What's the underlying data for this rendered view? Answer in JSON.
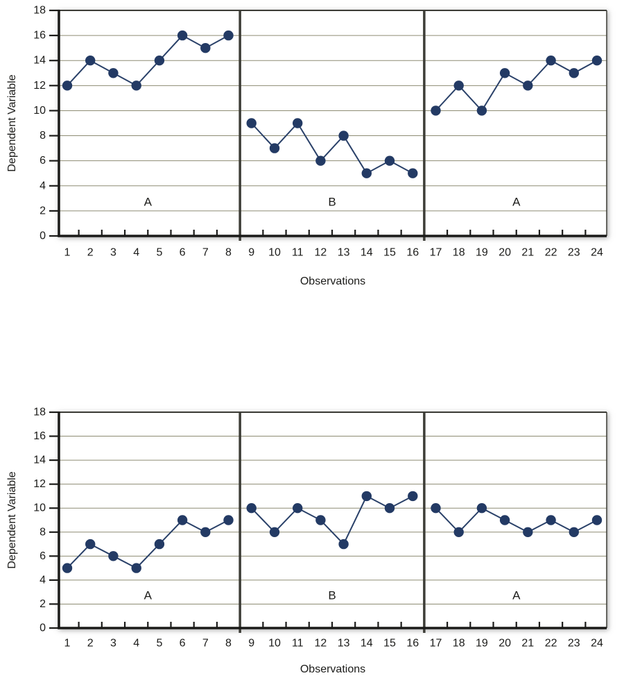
{
  "colors": {
    "plot_bg": "#FBEDCA",
    "grid": "#8D8C73",
    "frame": "#3D3D37",
    "axis": "#1B1B19",
    "line": "#2A4169",
    "point": "#233A64",
    "text": "#1B1B19",
    "page_bg": "#FFFFFF"
  },
  "chart_data": [
    {
      "type": "line",
      "title": "",
      "xlabel": "Observations",
      "ylabel": "Dependent Variable",
      "x": [
        1,
        2,
        3,
        4,
        5,
        6,
        7,
        8,
        9,
        10,
        11,
        12,
        13,
        14,
        15,
        16,
        17,
        18,
        19,
        20,
        21,
        22,
        23,
        24
      ],
      "values": [
        12,
        14,
        13,
        12,
        14,
        16,
        15,
        16,
        9,
        7,
        9,
        6,
        8,
        5,
        6,
        5,
        10,
        12,
        10,
        13,
        12,
        14,
        13,
        14
      ],
      "ylim": [
        0,
        18
      ],
      "yticks": [
        0,
        2,
        4,
        6,
        8,
        10,
        12,
        14,
        16,
        18
      ],
      "grid": true,
      "legend": "none",
      "phases": [
        {
          "label": "A",
          "from": 1,
          "to": 8
        },
        {
          "label": "B",
          "from": 9,
          "to": 16
        },
        {
          "label": "A",
          "from": 17,
          "to": 24
        }
      ]
    },
    {
      "type": "line",
      "title": "",
      "xlabel": "Observations",
      "ylabel": "Dependent Variable",
      "x": [
        1,
        2,
        3,
        4,
        5,
        6,
        7,
        8,
        9,
        10,
        11,
        12,
        13,
        14,
        15,
        16,
        17,
        18,
        19,
        20,
        21,
        22,
        23,
        24
      ],
      "values": [
        5,
        7,
        6,
        5,
        7,
        9,
        8,
        9,
        10,
        8,
        10,
        9,
        7,
        11,
        10,
        11,
        10,
        8,
        10,
        9,
        8,
        9,
        8,
        9
      ],
      "ylim": [
        0,
        18
      ],
      "yticks": [
        0,
        2,
        4,
        6,
        8,
        10,
        12,
        14,
        16,
        18
      ],
      "grid": true,
      "legend": "none",
      "phases": [
        {
          "label": "A",
          "from": 1,
          "to": 8
        },
        {
          "label": "B",
          "from": 9,
          "to": 16
        },
        {
          "label": "A",
          "from": 17,
          "to": 24
        }
      ]
    }
  ]
}
